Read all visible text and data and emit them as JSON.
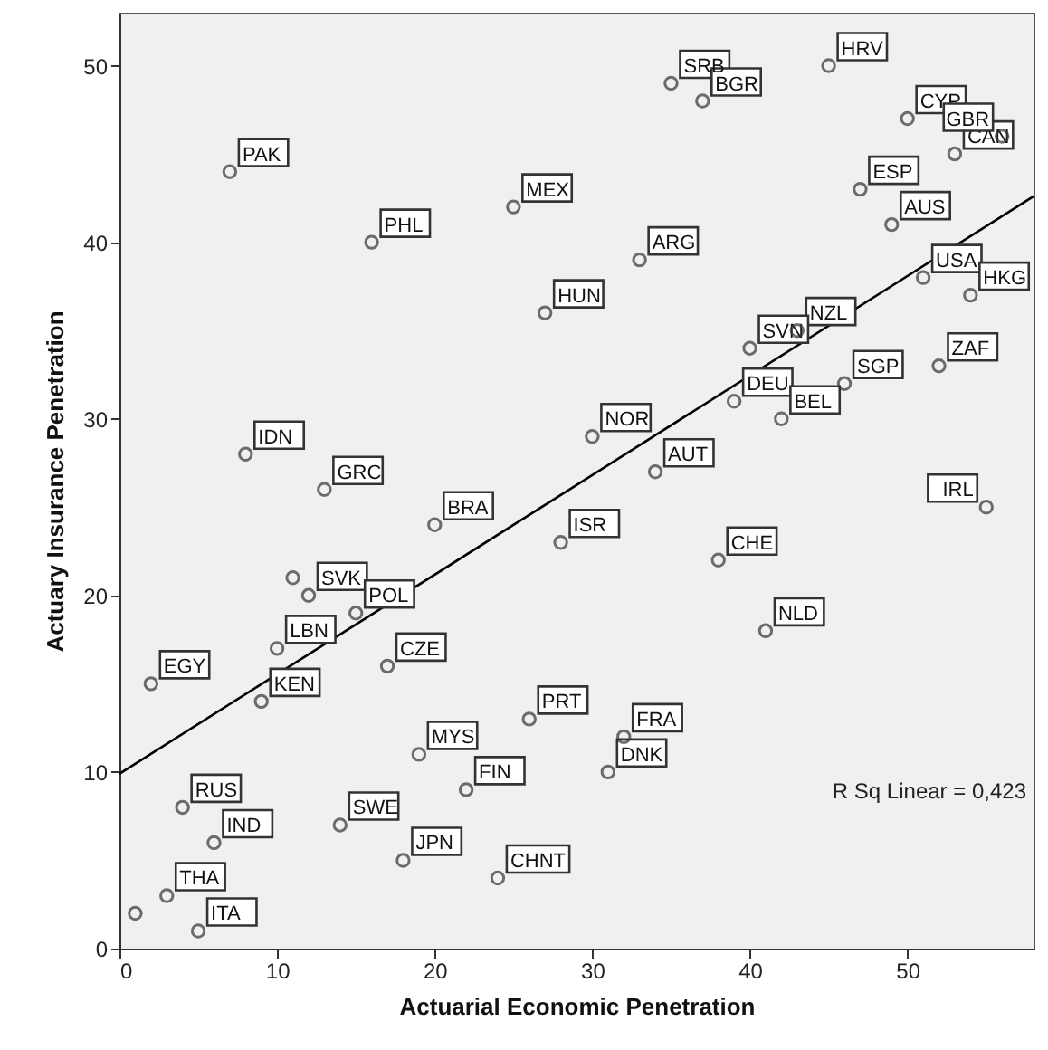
{
  "chart_data": {
    "type": "scatter",
    "xlabel": "Actuarial Economic Penetration",
    "ylabel": "Actuary Insurance Penetration",
    "xlim": [
      0,
      58
    ],
    "ylim": [
      0,
      53
    ],
    "xticks": [
      0,
      10,
      20,
      30,
      40,
      50
    ],
    "yticks": [
      0,
      10,
      20,
      30,
      40,
      50
    ],
    "grid": false,
    "marker": "circle",
    "series": [
      {
        "color": "#333333",
        "x": [
          7,
          16,
          25,
          27,
          8,
          13,
          20,
          35,
          37,
          45,
          50,
          56,
          53,
          47,
          49,
          33,
          51,
          54,
          43,
          40,
          52,
          46,
          39,
          42,
          30,
          34,
          55,
          28,
          38,
          41,
          12,
          11,
          10,
          15,
          17,
          9,
          2,
          4,
          6,
          3,
          5,
          1,
          14,
          18,
          24,
          19,
          22,
          26,
          32,
          31
        ],
        "values": [
          44,
          40,
          42,
          36,
          28,
          26,
          24,
          49,
          48,
          50,
          47,
          46,
          45,
          43,
          41,
          39,
          38,
          37,
          35,
          34,
          33,
          32,
          31,
          30,
          29,
          27,
          25,
          23,
          22,
          18,
          20,
          21,
          17,
          19,
          16,
          14,
          15,
          8,
          6,
          3,
          1,
          2,
          7,
          5,
          4,
          11,
          9,
          13,
          12,
          10
        ]
      },
      {
        "type": "line",
        "marker": "none",
        "color": "#000000",
        "x": [
          0,
          58
        ],
        "values": [
          9.9,
          42.6
        ]
      }
    ],
    "annotations": [
      {
        "text": "PAK",
        "x": 7,
        "y": 44
      },
      {
        "text": "PHL",
        "x": 16,
        "y": 40
      },
      {
        "text": "MEX",
        "x": 25,
        "y": 42
      },
      {
        "text": "HUN",
        "x": 27,
        "y": 36
      },
      {
        "text": "IDN",
        "x": 8,
        "y": 28
      },
      {
        "text": "GRC",
        "x": 13,
        "y": 26
      },
      {
        "text": "BRA",
        "x": 20,
        "y": 24
      },
      {
        "text": "SRB",
        "x": 35,
        "y": 49
      },
      {
        "text": "BGR",
        "x": 37,
        "y": 48
      },
      {
        "text": "HRV",
        "x": 45,
        "y": 50
      },
      {
        "text": "CYP",
        "x": 50,
        "y": 47
      },
      {
        "text": "GBR",
        "x": 56,
        "y": 46
      },
      {
        "text": "CAN",
        "x": 53,
        "y": 45
      },
      {
        "text": "ESP",
        "x": 47,
        "y": 43
      },
      {
        "text": "AUS",
        "x": 49,
        "y": 41
      },
      {
        "text": "ARG",
        "x": 33,
        "y": 39
      },
      {
        "text": "USA",
        "x": 51,
        "y": 38
      },
      {
        "text": "HKG",
        "x": 54,
        "y": 37
      },
      {
        "text": "NZL",
        "x": 43,
        "y": 35
      },
      {
        "text": "SVN",
        "x": 40,
        "y": 34
      },
      {
        "text": "ZAF",
        "x": 52,
        "y": 33
      },
      {
        "text": "SGP",
        "x": 46,
        "y": 32
      },
      {
        "text": "DEU",
        "x": 39,
        "y": 31
      },
      {
        "text": "BEL",
        "x": 42,
        "y": 30
      },
      {
        "text": "NOR",
        "x": 30,
        "y": 29
      },
      {
        "text": "AUT",
        "x": 34,
        "y": 27
      },
      {
        "text": "IRL",
        "x": 55,
        "y": 25
      },
      {
        "text": "ISR",
        "x": 28,
        "y": 23
      },
      {
        "text": "CHE",
        "x": 38,
        "y": 22
      },
      {
        "text": "NLD",
        "x": 41,
        "y": 18
      },
      {
        "text": "SVK",
        "x": 12,
        "y": 20
      },
      {
        "text": "LBN",
        "x": 10,
        "y": 17
      },
      {
        "text": "POL",
        "x": 15,
        "y": 19
      },
      {
        "text": "CZE",
        "x": 17,
        "y": 16
      },
      {
        "text": "KEN",
        "x": 9,
        "y": 14
      },
      {
        "text": "EGY",
        "x": 2,
        "y": 15
      },
      {
        "text": "RUS",
        "x": 4,
        "y": 8
      },
      {
        "text": "IND",
        "x": 6,
        "y": 6
      },
      {
        "text": "THA",
        "x": 3,
        "y": 3
      },
      {
        "text": "ITA",
        "x": 5,
        "y": 1
      },
      {
        "text": "SWE",
        "x": 14,
        "y": 7
      },
      {
        "text": "JPN",
        "x": 18,
        "y": 5
      },
      {
        "text": "CHNT",
        "x": 24,
        "y": 4
      },
      {
        "text": "MYS",
        "x": 19,
        "y": 11
      },
      {
        "text": "FIN",
        "x": 22,
        "y": 9
      },
      {
        "text": "PRT",
        "x": 26,
        "y": 13
      },
      {
        "text": "FRA",
        "x": 32,
        "y": 12
      },
      {
        "text": "DNK",
        "x": 31,
        "y": 10
      },
      "R Sq Linear = 0,423"
    ]
  }
}
